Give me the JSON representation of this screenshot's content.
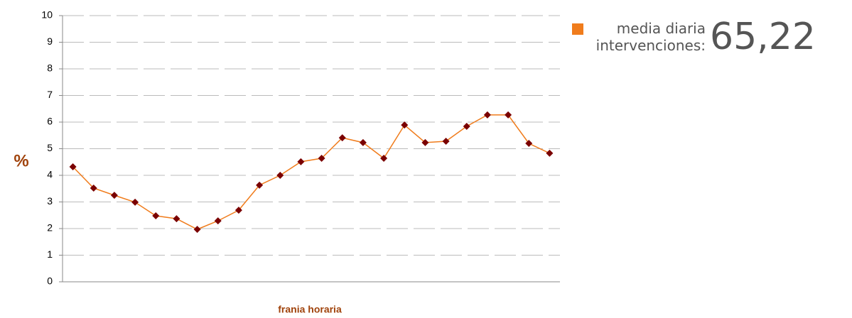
{
  "chart_data": {
    "type": "line",
    "x_label": "frania horaria",
    "y_label": "%",
    "categories": [
      null,
      null,
      null,
      null,
      null,
      null,
      null,
      null,
      null,
      null,
      null,
      null,
      null,
      null,
      null,
      null,
      null,
      null,
      null,
      null,
      null,
      null,
      null,
      null
    ],
    "series": [
      {
        "name": "media diaria intervenciones:",
        "color": "#f07c1c",
        "marker_color": "#7a0000",
        "values": [
          4.32,
          3.52,
          3.25,
          2.99,
          2.48,
          2.37,
          1.97,
          2.29,
          2.69,
          3.63,
          4.0,
          4.51,
          4.64,
          5.41,
          5.23,
          4.64,
          5.89,
          5.23,
          5.28,
          5.84,
          6.27,
          6.27,
          5.2,
          4.83
        ]
      }
    ],
    "legend_value": "65,22",
    "ylim": [
      0,
      10
    ],
    "yticks": [
      0,
      1,
      2,
      3,
      4,
      5,
      6,
      7,
      8,
      9,
      10
    ],
    "grid": true
  }
}
